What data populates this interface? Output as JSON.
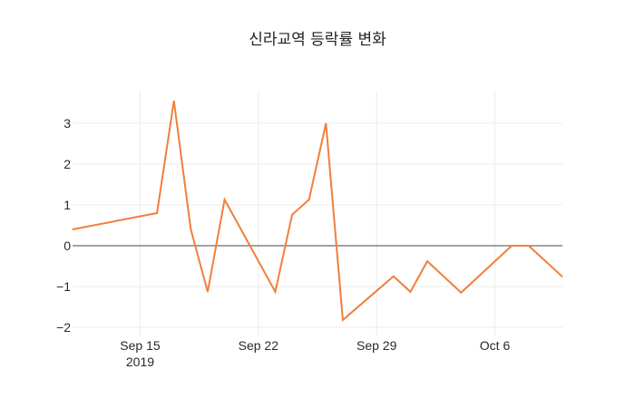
{
  "chart_data": {
    "type": "line",
    "title": "신라교역 등락률 변화",
    "xlabel": "",
    "ylabel": "",
    "x_axis_type": "date",
    "xlim": [
      "2019-09-11",
      "2019-10-10"
    ],
    "ylim": [
      -2.2,
      3.8
    ],
    "grid": true,
    "x_ticks": [
      {
        "date": "2019-09-15",
        "label": "Sep 15",
        "sublabel": "2019"
      },
      {
        "date": "2019-09-22",
        "label": "Sep 22",
        "sublabel": ""
      },
      {
        "date": "2019-09-29",
        "label": "Sep 29",
        "sublabel": ""
      },
      {
        "date": "2019-10-06",
        "label": "Oct 6",
        "sublabel": ""
      }
    ],
    "y_ticks": [
      {
        "value": 3,
        "label": "3"
      },
      {
        "value": 2,
        "label": "2"
      },
      {
        "value": 1,
        "label": "1"
      },
      {
        "value": 0,
        "label": "0"
      },
      {
        "value": -1,
        "label": "−1"
      },
      {
        "value": -2,
        "label": "−2"
      }
    ],
    "series": [
      {
        "color": "#f07f3c",
        "x": [
          "2019-09-11",
          "2019-09-16",
          "2019-09-17",
          "2019-09-18",
          "2019-09-19",
          "2019-09-20",
          "2019-09-23",
          "2019-09-24",
          "2019-09-25",
          "2019-09-26",
          "2019-09-27",
          "2019-09-30",
          "2019-10-01",
          "2019-10-02",
          "2019-10-04",
          "2019-10-07",
          "2019-10-08",
          "2019-10-10"
        ],
        "y": [
          0.4,
          0.8,
          3.55,
          0.4,
          -1.13,
          1.13,
          -1.13,
          0.76,
          1.13,
          3.0,
          -1.82,
          -0.75,
          -1.13,
          -0.38,
          -1.15,
          0.0,
          0.0,
          -0.76
        ]
      }
    ]
  }
}
